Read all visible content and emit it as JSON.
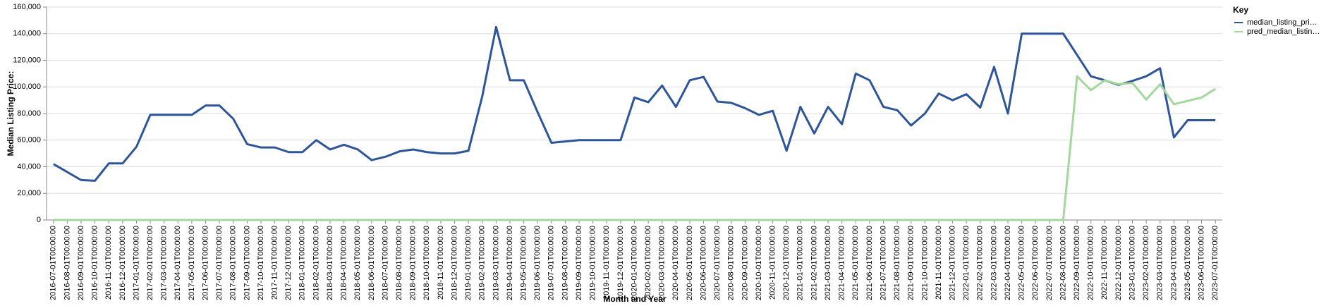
{
  "chart_data": {
    "type": "line",
    "x_label": "Month and Year",
    "y_label": "Median Listing Price:",
    "legend_title": "Key",
    "categories": [
      "2016-07-01T00:00:00",
      "2016-08-01T00:00:00",
      "2016-09-01T00:00:00",
      "2016-10-01T00:00:00",
      "2016-11-01T00:00:00",
      "2016-12-01T00:00:00",
      "2017-01-01T00:00:00",
      "2017-02-01T00:00:00",
      "2017-03-01T00:00:00",
      "2017-04-01T00:00:00",
      "2017-05-01T00:00:00",
      "2017-06-01T00:00:00",
      "2017-07-01T00:00:00",
      "2017-08-01T00:00:00",
      "2017-09-01T00:00:00",
      "2017-10-01T00:00:00",
      "2017-11-01T00:00:00",
      "2017-12-01T00:00:00",
      "2018-01-01T00:00:00",
      "2018-02-01T00:00:00",
      "2018-03-01T00:00:00",
      "2018-04-01T00:00:00",
      "2018-05-01T00:00:00",
      "2018-06-01T00:00:00",
      "2018-07-01T00:00:00",
      "2018-08-01T00:00:00",
      "2018-09-01T00:00:00",
      "2018-10-01T00:00:00",
      "2018-11-01T00:00:00",
      "2018-12-01T00:00:00",
      "2019-01-01T00:00:00",
      "2019-02-01T00:00:00",
      "2019-03-01T00:00:00",
      "2019-04-01T00:00:00",
      "2019-05-01T00:00:00",
      "2019-06-01T00:00:00",
      "2019-07-01T00:00:00",
      "2019-08-01T00:00:00",
      "2019-09-01T00:00:00",
      "2019-10-01T00:00:00",
      "2019-11-01T00:00:00",
      "2019-12-01T00:00:00",
      "2020-01-01T00:00:00",
      "2020-02-01T00:00:00",
      "2020-03-01T00:00:00",
      "2020-04-01T00:00:00",
      "2020-05-01T00:00:00",
      "2020-06-01T00:00:00",
      "2020-07-01T00:00:00",
      "2020-08-01T00:00:00",
      "2020-09-01T00:00:00",
      "2020-10-01T00:00:00",
      "2020-11-01T00:00:00",
      "2020-12-01T00:00:00",
      "2021-01-01T00:00:00",
      "2021-02-01T00:00:00",
      "2021-03-01T00:00:00",
      "2021-04-01T00:00:00",
      "2021-05-01T00:00:00",
      "2021-06-01T00:00:00",
      "2021-07-01T00:00:00",
      "2021-08-01T00:00:00",
      "2021-09-01T00:00:00",
      "2021-10-01T00:00:00",
      "2021-11-01T00:00:00",
      "2021-12-01T00:00:00",
      "2022-01-01T00:00:00",
      "2022-02-01T00:00:00",
      "2022-03-01T00:00:00",
      "2022-04-01T00:00:00",
      "2022-05-01T00:00:00",
      "2022-06-01T00:00:00",
      "2022-07-01T00:00:00",
      "2022-08-01T00:00:00",
      "2022-09-01T00:00:00",
      "2022-10-01T00:00:00",
      "2022-11-01T00:00:00",
      "2022-12-01T00:00:00",
      "2023-01-01T00:00:00",
      "2023-02-01T00:00:00",
      "2023-03-01T00:00:00",
      "2023-04-01T00:00:00",
      "2023-05-01T00:00:00",
      "2023-06-01T00:00:00",
      "2023-07-01T00:00:00"
    ],
    "series": [
      {
        "name": "median_listing_pri…",
        "color": "#2b55a0",
        "values": [
          42000,
          36000,
          30000,
          29500,
          42500,
          42500,
          55000,
          79000,
          79000,
          79000,
          79000,
          86000,
          86000,
          76000,
          57000,
          54500,
          54500,
          51000,
          51000,
          60000,
          53000,
          56500,
          53000,
          45000,
          47500,
          51500,
          53000,
          51000,
          50000,
          50000,
          52000,
          93000,
          145000,
          105000,
          105000,
          81000,
          58000,
          59000,
          60000,
          60000,
          60000,
          60000,
          92000,
          88500,
          101000,
          85000,
          105000,
          107500,
          89000,
          88000,
          84000,
          79000,
          82000,
          52000,
          85000,
          65000,
          85000,
          72000,
          110000,
          105000,
          85000,
          82500,
          71000,
          80000,
          95000,
          90000,
          94500,
          84500,
          115000,
          80000,
          140000,
          140000,
          140000,
          140000,
          124000,
          108000,
          105000,
          101500,
          104500,
          108000,
          114000,
          62000,
          75000,
          75000,
          75000
        ]
      },
      {
        "name": "pred_median_listin…",
        "color": "#a1d99b",
        "values": [
          0,
          0,
          0,
          0,
          0,
          0,
          0,
          0,
          0,
          0,
          0,
          0,
          0,
          0,
          0,
          0,
          0,
          0,
          0,
          0,
          0,
          0,
          0,
          0,
          0,
          0,
          0,
          0,
          0,
          0,
          0,
          0,
          0,
          0,
          0,
          0,
          0,
          0,
          0,
          0,
          0,
          0,
          0,
          0,
          0,
          0,
          0,
          0,
          0,
          0,
          0,
          0,
          0,
          0,
          0,
          0,
          0,
          0,
          0,
          0,
          0,
          0,
          0,
          0,
          0,
          0,
          0,
          0,
          0,
          0,
          0,
          0,
          0,
          0,
          108000,
          97500,
          105000,
          102000,
          103000,
          90500,
          102000,
          87000,
          89500,
          92000,
          98500
        ]
      }
    ],
    "ylim": [
      0,
      160000
    ],
    "yticks": [
      0,
      {
        "value": 20000,
        "label": "20,000"
      },
      {
        "value": 40000,
        "label": "40,000"
      },
      {
        "value": 60000,
        "label": "60,000"
      },
      {
        "value": 80000,
        "label": "80,000"
      },
      {
        "value": 100000,
        "label": "100,000"
      },
      {
        "value": 120000,
        "label": "120,000"
      },
      {
        "value": 140000,
        "label": "140,000"
      },
      {
        "value": 160000,
        "label": "160,000"
      }
    ],
    "grid": true
  }
}
